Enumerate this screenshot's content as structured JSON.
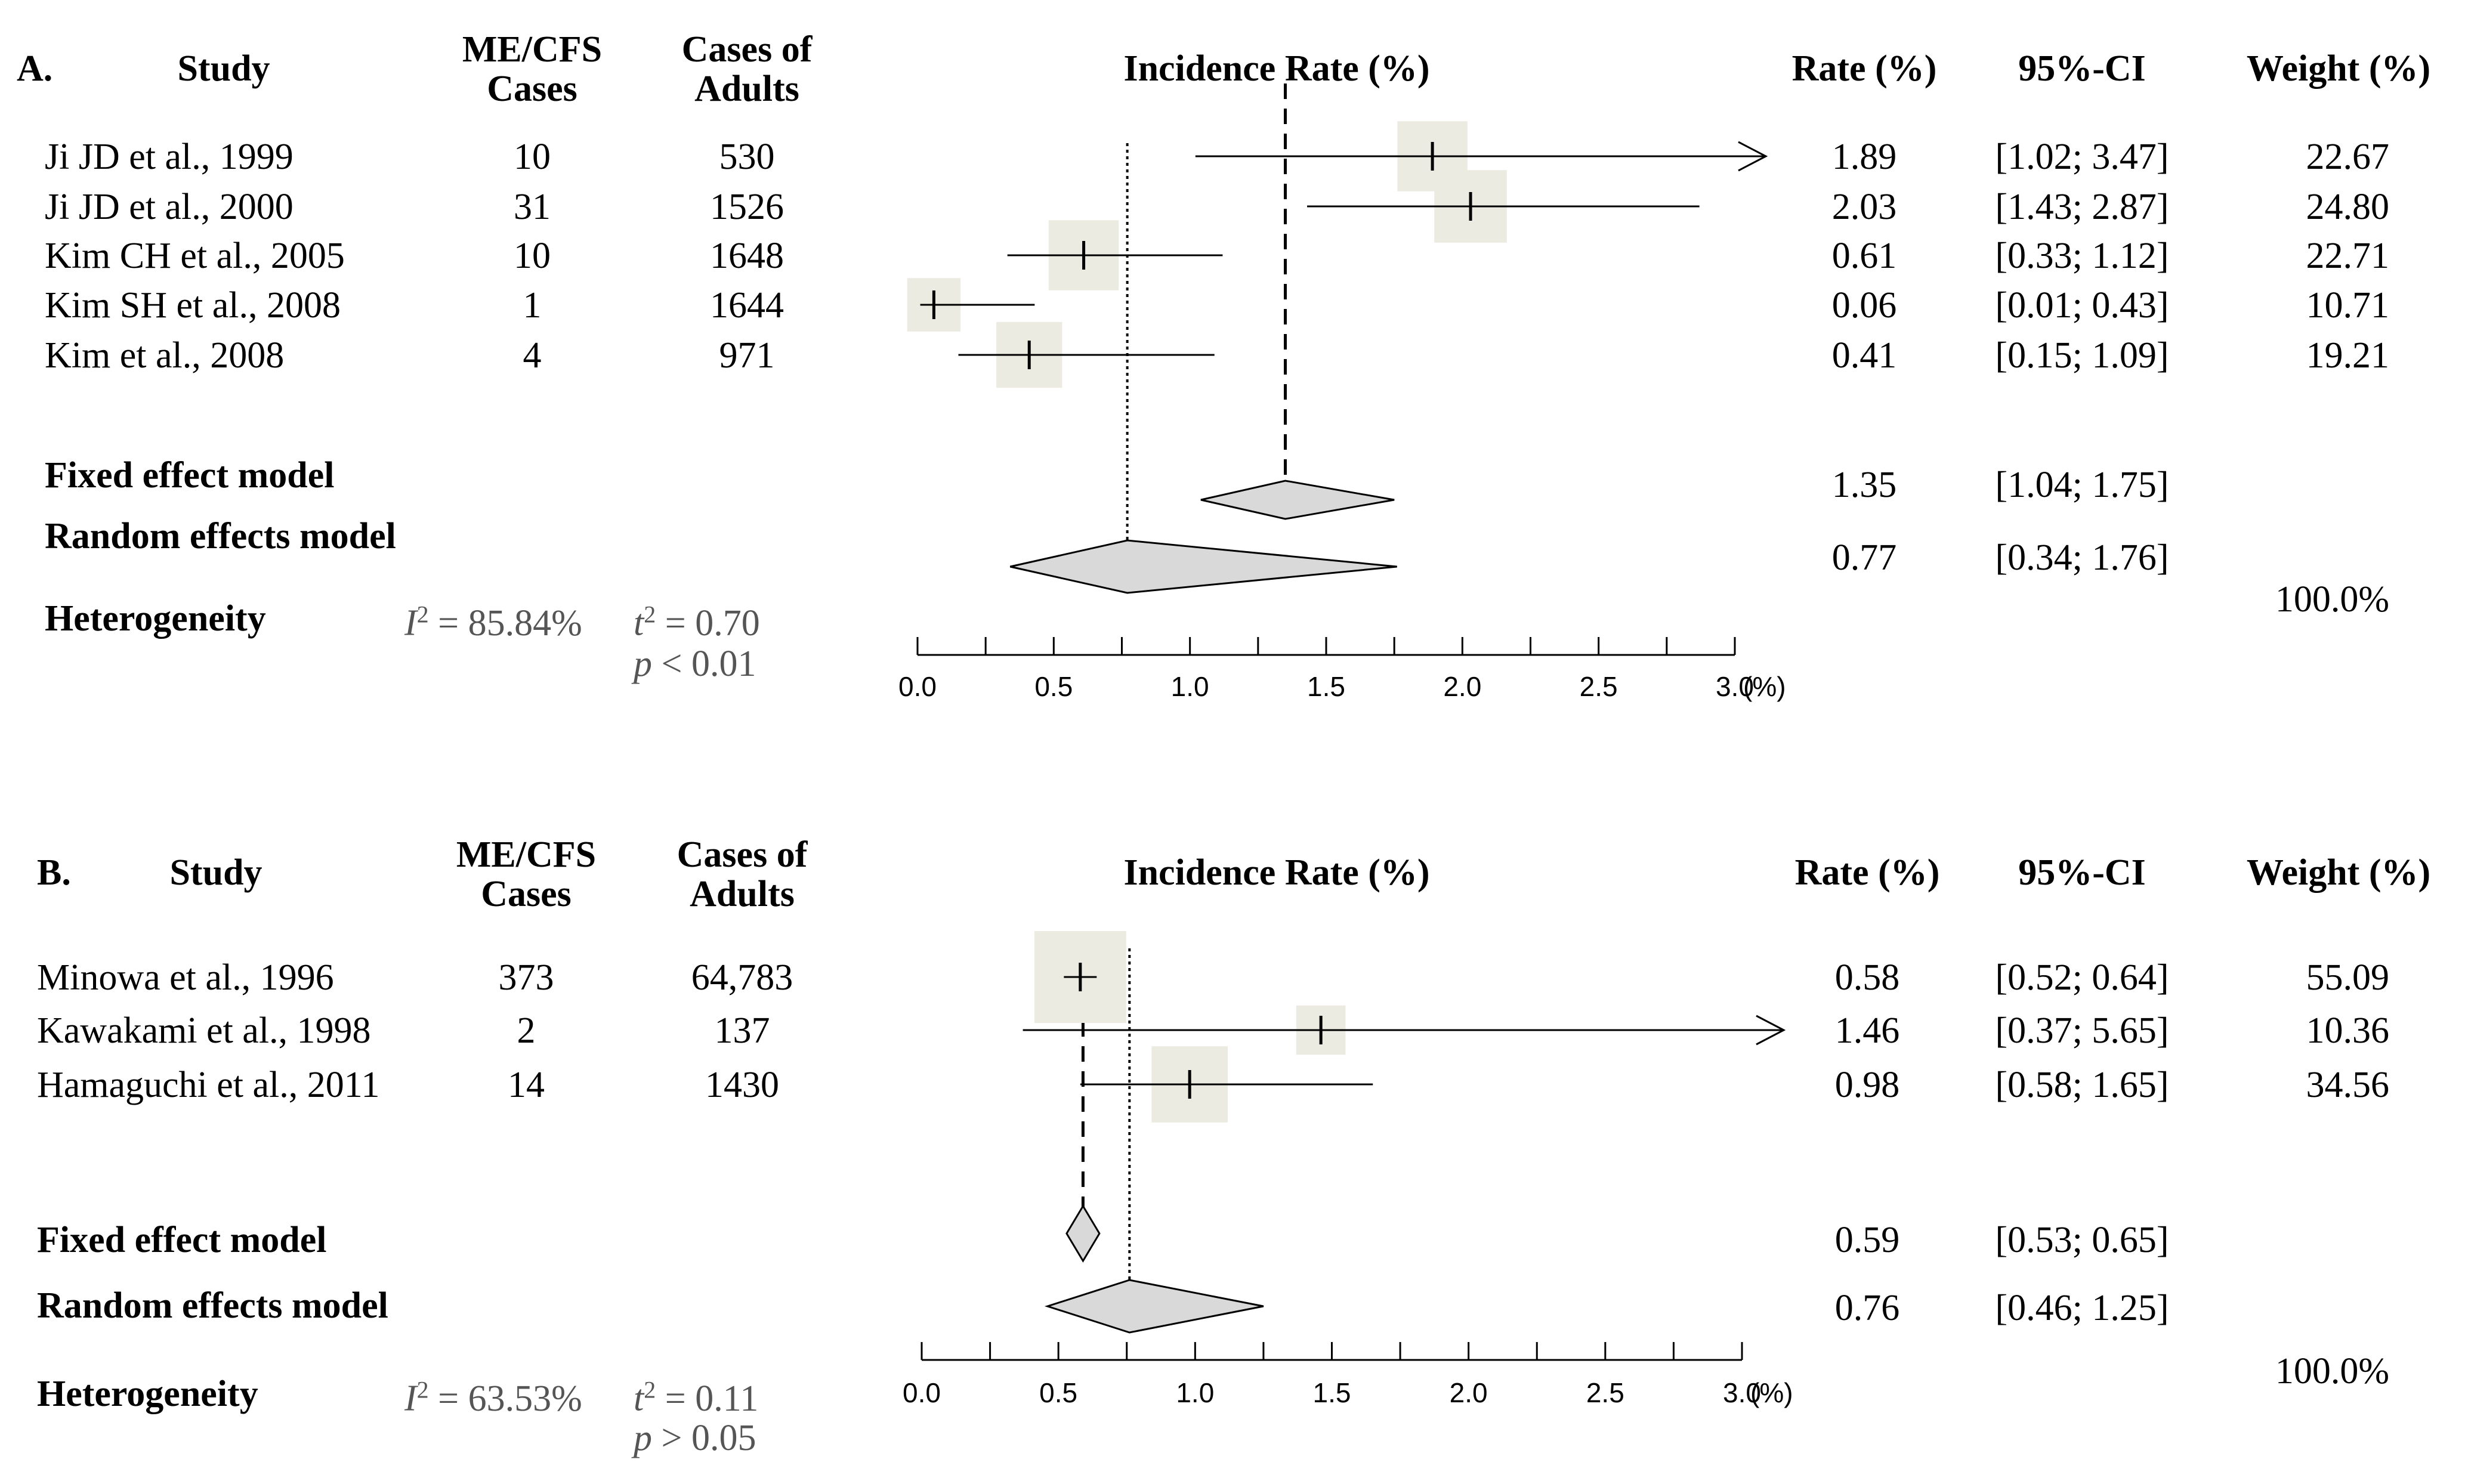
{
  "chart_data": [
    {
      "type": "forest",
      "panel": "A.",
      "title": "Incidence Rate (%)",
      "columns": {
        "study": "Study",
        "cases": "ME/CFS\nCases",
        "adults": "Cases of\nAdults",
        "rate": "Rate (%)",
        "ci": "95%-CI",
        "weight": "Weight (%)"
      },
      "studies": [
        {
          "name": "Ji JD et al., 1999",
          "cases": "10",
          "adults": "530",
          "rate": 1.89,
          "lower": 1.02,
          "upper": 3.47,
          "weight": 22.67,
          "rate_text": "1.89",
          "ci_text": "[1.02; 3.47]",
          "weight_text": "22.67"
        },
        {
          "name": "Ji JD et al., 2000",
          "cases": "31",
          "adults": "1526",
          "rate": 2.03,
          "lower": 1.43,
          "upper": 2.87,
          "weight": 24.8,
          "rate_text": "2.03",
          "ci_text": "[1.43; 2.87]",
          "weight_text": "24.80"
        },
        {
          "name": "Kim CH et al., 2005",
          "cases": "10",
          "adults": "1648",
          "rate": 0.61,
          "lower": 0.33,
          "upper": 1.12,
          "weight": 22.71,
          "rate_text": "0.61",
          "ci_text": "[0.33; 1.12]",
          "weight_text": "22.71"
        },
        {
          "name": "Kim SH et al., 2008",
          "cases": "1",
          "adults": "1644",
          "rate": 0.06,
          "lower": 0.01,
          "upper": 0.43,
          "weight": 10.71,
          "rate_text": "0.06",
          "ci_text": "[0.01; 0.43]",
          "weight_text": "10.71"
        },
        {
          "name": "Kim et al., 2008",
          "cases": "4",
          "adults": "971",
          "rate": 0.41,
          "lower": 0.15,
          "upper": 1.09,
          "weight": 19.21,
          "rate_text": "0.41",
          "ci_text": "[0.15; 1.09]",
          "weight_text": "19.21"
        }
      ],
      "fixed": {
        "label": "Fixed effect model",
        "rate": 1.35,
        "lower": 1.04,
        "upper": 1.75,
        "rate_text": "1.35",
        "ci_text": "[1.04; 1.75]"
      },
      "random": {
        "label": "Random effects model",
        "rate": 0.77,
        "lower": 0.34,
        "upper": 1.76,
        "rate_text": "0.77",
        "ci_text": "[0.34; 1.76]"
      },
      "heterogeneity": {
        "label": "Heterogeneity",
        "i2_label": "I",
        "i2_value": "2 = 85.84%",
        "tau_label": "t",
        "tau_value": "2 = 0.70",
        "p_label": "p",
        "p_value": " < 0.01"
      },
      "total_weight": "100.0%",
      "axis": {
        "range": [
          0,
          3.0
        ],
        "ticks": [
          "0.0",
          "0.5",
          "1.0",
          "1.5",
          "2.0",
          "2.5",
          "3.0"
        ],
        "unit": "(%)"
      }
    },
    {
      "type": "forest",
      "panel": "B.",
      "title": "Incidence Rate (%)",
      "columns": {
        "study": "Study",
        "cases": "ME/CFS\nCases",
        "adults": "Cases of\nAdults",
        "rate": "Rate (%)",
        "ci": "95%-CI",
        "weight": "Weight (%)"
      },
      "studies": [
        {
          "name": "Minowa et al., 1996",
          "cases": "373",
          "adults": "64,783",
          "rate": 0.58,
          "lower": 0.52,
          "upper": 0.64,
          "weight": 55.09,
          "rate_text": "0.58",
          "ci_text": "[0.52; 0.64]",
          "weight_text": "55.09"
        },
        {
          "name": "Kawakami et al., 1998",
          "cases": "2",
          "adults": "137",
          "rate": 1.46,
          "lower": 0.37,
          "upper": 5.65,
          "weight": 10.36,
          "rate_text": "1.46",
          "ci_text": "[0.37; 5.65]",
          "weight_text": "10.36"
        },
        {
          "name": "Hamaguchi et al., 2011",
          "cases": "14",
          "adults": "1430",
          "rate": 0.98,
          "lower": 0.58,
          "upper": 1.65,
          "weight": 34.56,
          "rate_text": "0.98",
          "ci_text": "[0.58; 1.65]",
          "weight_text": "34.56"
        }
      ],
      "fixed": {
        "label": "Fixed effect model",
        "rate": 0.59,
        "lower": 0.53,
        "upper": 0.65,
        "rate_text": "0.59",
        "ci_text": "[0.53; 0.65]"
      },
      "random": {
        "label": "Random effects model",
        "rate": 0.76,
        "lower": 0.46,
        "upper": 1.25,
        "rate_text": "0.76",
        "ci_text": "[0.46; 1.25]"
      },
      "heterogeneity": {
        "label": "Heterogeneity",
        "i2_label": "I",
        "i2_value": "2 = 63.53%",
        "tau_label": "t",
        "tau_value": "2 = 0.11",
        "p_label": "p",
        "p_value": " > 0.05"
      },
      "total_weight": "100.0%",
      "axis": {
        "range": [
          0,
          3.0
        ],
        "ticks": [
          "0.0",
          "0.5",
          "1.0",
          "1.5",
          "2.0",
          "2.5",
          "3.0"
        ],
        "unit": "(%)"
      }
    }
  ],
  "colors": {
    "box": "#ecebe1",
    "diamond": "#d9d9d9",
    "line": "#000000",
    "stat_text": "#555555"
  }
}
